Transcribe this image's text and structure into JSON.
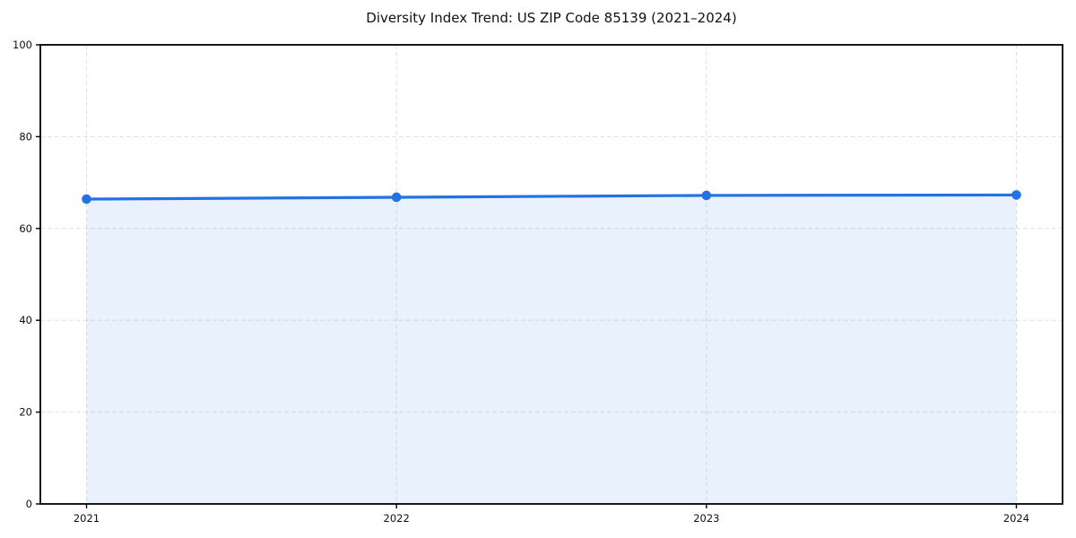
{
  "chart_data": {
    "type": "area",
    "title": "Diversity Index Trend: US ZIP Code 85139 (2021–2024)",
    "categories": [
      "2021",
      "2022",
      "2023",
      "2024"
    ],
    "values": [
      66.4,
      66.8,
      67.2,
      67.3
    ],
    "xlabel": "",
    "ylabel": "",
    "ylim": [
      0,
      100
    ],
    "yticks": [
      0,
      20,
      40,
      60,
      80,
      100
    ],
    "grid": true,
    "grid_style": "dashed",
    "legend": false,
    "line_color": "#2272e4",
    "fill_color": "rgba(34, 114, 228, 0.10)",
    "marker": "circle",
    "spine_color": "#000000",
    "background_color": "#ffffff"
  }
}
